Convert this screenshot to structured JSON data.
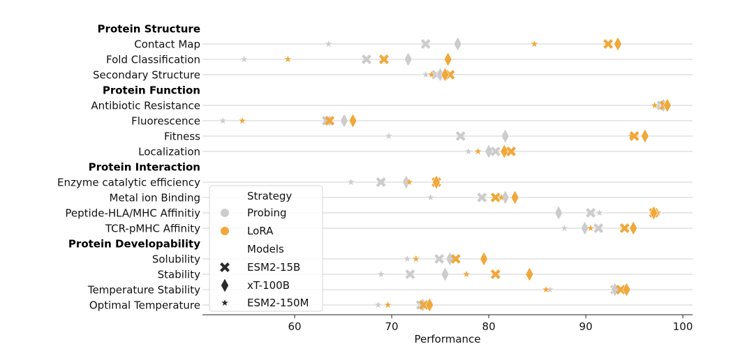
{
  "chart_data": {
    "type": "scatter",
    "xlabel": "Performance",
    "xlim": [
      50.5,
      101
    ],
    "xticks": [
      60,
      70,
      80,
      90,
      100
    ],
    "grid": "horizontal",
    "legend_placement": "lower-center-left",
    "colors": {
      "Probing": "#cccccc",
      "LoRA": "#f0a83a"
    },
    "rows": [
      {
        "kind": "group",
        "label": "Protein Structure"
      },
      {
        "kind": "task",
        "label": "Contact Map",
        "points": [
          {
            "model": "ESM2-150M",
            "strategy": "Probing",
            "value": 63.5
          },
          {
            "model": "ESM2-15B",
            "strategy": "Probing",
            "value": 73.5
          },
          {
            "model": "xT-100B",
            "strategy": "Probing",
            "value": 76.8
          },
          {
            "model": "ESM2-150M",
            "strategy": "LoRA",
            "value": 84.7
          },
          {
            "model": "ESM2-15B",
            "strategy": "LoRA",
            "value": 92.3
          },
          {
            "model": "xT-100B",
            "strategy": "LoRA",
            "value": 93.3
          }
        ]
      },
      {
        "kind": "task",
        "label": "Fold Classification",
        "points": [
          {
            "model": "ESM2-150M",
            "strategy": "Probing",
            "value": 54.8
          },
          {
            "model": "ESM2-150M",
            "strategy": "LoRA",
            "value": 59.3
          },
          {
            "model": "ESM2-15B",
            "strategy": "Probing",
            "value": 67.4
          },
          {
            "model": "ESM2-15B",
            "strategy": "LoRA",
            "value": 69.2
          },
          {
            "model": "xT-100B",
            "strategy": "Probing",
            "value": 71.7
          },
          {
            "model": "xT-100B",
            "strategy": "LoRA",
            "value": 75.8
          }
        ]
      },
      {
        "kind": "task",
        "label": "Secondary Structure",
        "points": [
          {
            "model": "ESM2-150M",
            "strategy": "Probing",
            "value": 73.5
          },
          {
            "model": "ESM2-150M",
            "strategy": "LoRA",
            "value": 74.1
          },
          {
            "model": "ESM2-15B",
            "strategy": "Probing",
            "value": 74.6
          },
          {
            "model": "xT-100B",
            "strategy": "Probing",
            "value": 75.0
          },
          {
            "model": "ESM2-15B",
            "strategy": "LoRA",
            "value": 76.0
          },
          {
            "model": "xT-100B",
            "strategy": "LoRA",
            "value": 75.5
          }
        ]
      },
      {
        "kind": "group",
        "label": "Protein Function"
      },
      {
        "kind": "task",
        "label": "Antibiotic Resistance",
        "points": [
          {
            "model": "ESM2-150M",
            "strategy": "LoRA",
            "value": 97.1
          },
          {
            "model": "ESM2-150M",
            "strategy": "Probing",
            "value": 97.5
          },
          {
            "model": "ESM2-15B",
            "strategy": "Probing",
            "value": 97.8
          },
          {
            "model": "xT-100B",
            "strategy": "Probing",
            "value": 98.0
          },
          {
            "model": "ESM2-15B",
            "strategy": "LoRA",
            "value": 98.1
          },
          {
            "model": "xT-100B",
            "strategy": "LoRA",
            "value": 98.4
          }
        ]
      },
      {
        "kind": "task",
        "label": "Fluorescence",
        "points": [
          {
            "model": "ESM2-150M",
            "strategy": "Probing",
            "value": 52.6
          },
          {
            "model": "ESM2-150M",
            "strategy": "LoRA",
            "value": 54.6
          },
          {
            "model": "ESM2-15B",
            "strategy": "Probing",
            "value": 63.3
          },
          {
            "model": "ESM2-15B",
            "strategy": "LoRA",
            "value": 63.6
          },
          {
            "model": "xT-100B",
            "strategy": "Probing",
            "value": 65.1
          },
          {
            "model": "xT-100B",
            "strategy": "LoRA",
            "value": 66.0
          }
        ]
      },
      {
        "kind": "task",
        "label": "Fitness",
        "points": [
          {
            "model": "ESM2-150M",
            "strategy": "Probing",
            "value": 69.7
          },
          {
            "model": "ESM2-15B",
            "strategy": "Probing",
            "value": 77.1
          },
          {
            "model": "xT-100B",
            "strategy": "Probing",
            "value": 81.7
          },
          {
            "model": "ESM2-150M",
            "strategy": "LoRA",
            "value": 94.7
          },
          {
            "model": "ESM2-15B",
            "strategy": "LoRA",
            "value": 95.0
          },
          {
            "model": "xT-100B",
            "strategy": "LoRA",
            "value": 96.1
          }
        ]
      },
      {
        "kind": "task",
        "label": "Localization",
        "points": [
          {
            "model": "ESM2-150M",
            "strategy": "Probing",
            "value": 77.9
          },
          {
            "model": "ESM2-150M",
            "strategy": "LoRA",
            "value": 78.9
          },
          {
            "model": "xT-100B",
            "strategy": "Probing",
            "value": 80.0
          },
          {
            "model": "ESM2-15B",
            "strategy": "Probing",
            "value": 80.7
          },
          {
            "model": "xT-100B",
            "strategy": "LoRA",
            "value": 81.6
          },
          {
            "model": "ESM2-15B",
            "strategy": "LoRA",
            "value": 82.3
          }
        ]
      },
      {
        "kind": "group",
        "label": "Protein Interaction"
      },
      {
        "kind": "task",
        "label": "Enzyme catalytic efficiency",
        "points": [
          {
            "model": "ESM2-150M",
            "strategy": "Probing",
            "value": 65.8
          },
          {
            "model": "ESM2-15B",
            "strategy": "Probing",
            "value": 68.9
          },
          {
            "model": "xT-100B",
            "strategy": "Probing",
            "value": 71.5
          },
          {
            "model": "ESM2-150M",
            "strategy": "LoRA",
            "value": 71.8
          },
          {
            "model": "ESM2-15B",
            "strategy": "LoRA",
            "value": 74.6
          },
          {
            "model": "xT-100B",
            "strategy": "LoRA",
            "value": 74.6
          }
        ]
      },
      {
        "kind": "task",
        "label": "Metal ion Binding",
        "points": [
          {
            "model": "ESM2-150M",
            "strategy": "Probing",
            "value": 74.0
          },
          {
            "model": "ESM2-15B",
            "strategy": "Probing",
            "value": 79.3
          },
          {
            "model": "ESM2-15B",
            "strategy": "LoRA",
            "value": 80.7
          },
          {
            "model": "ESM2-150M",
            "strategy": "LoRA",
            "value": 81.3
          },
          {
            "model": "xT-100B",
            "strategy": "Probing",
            "value": 81.7
          },
          {
            "model": "xT-100B",
            "strategy": "LoRA",
            "value": 82.7
          }
        ]
      },
      {
        "kind": "task",
        "label": "Peptide-HLA/MHC Affinitiy",
        "points": [
          {
            "model": "xT-100B",
            "strategy": "Probing",
            "value": 87.2
          },
          {
            "model": "ESM2-15B",
            "strategy": "Probing",
            "value": 90.5
          },
          {
            "model": "ESM2-150M",
            "strategy": "Probing",
            "value": 91.4
          },
          {
            "model": "ESM2-15B",
            "strategy": "LoRA",
            "value": 97.0
          },
          {
            "model": "ESM2-150M",
            "strategy": "LoRA",
            "value": 97.4
          },
          {
            "model": "xT-100B",
            "strategy": "LoRA",
            "value": 97.0
          }
        ]
      },
      {
        "kind": "task",
        "label": "TCR-pMHC Affinity",
        "points": [
          {
            "model": "ESM2-150M",
            "strategy": "Probing",
            "value": 87.8
          },
          {
            "model": "xT-100B",
            "strategy": "Probing",
            "value": 89.9
          },
          {
            "model": "ESM2-150M",
            "strategy": "LoRA",
            "value": 90.5
          },
          {
            "model": "ESM2-15B",
            "strategy": "Probing",
            "value": 91.3
          },
          {
            "model": "ESM2-15B",
            "strategy": "LoRA",
            "value": 94.0
          },
          {
            "model": "xT-100B",
            "strategy": "LoRA",
            "value": 94.9
          }
        ]
      },
      {
        "kind": "group",
        "label": "Protein Developability"
      },
      {
        "kind": "task",
        "label": "Solubility",
        "points": [
          {
            "model": "ESM2-150M",
            "strategy": "Probing",
            "value": 71.6
          },
          {
            "model": "ESM2-150M",
            "strategy": "LoRA",
            "value": 72.5
          },
          {
            "model": "ESM2-15B",
            "strategy": "Probing",
            "value": 74.9
          },
          {
            "model": "xT-100B",
            "strategy": "Probing",
            "value": 76.0
          },
          {
            "model": "ESM2-15B",
            "strategy": "LoRA",
            "value": 76.6
          },
          {
            "model": "xT-100B",
            "strategy": "LoRA",
            "value": 79.5
          }
        ]
      },
      {
        "kind": "task",
        "label": "Stability",
        "points": [
          {
            "model": "ESM2-150M",
            "strategy": "Probing",
            "value": 68.9
          },
          {
            "model": "ESM2-15B",
            "strategy": "Probing",
            "value": 71.9
          },
          {
            "model": "xT-100B",
            "strategy": "Probing",
            "value": 75.5
          },
          {
            "model": "ESM2-150M",
            "strategy": "LoRA",
            "value": 77.7
          },
          {
            "model": "ESM2-15B",
            "strategy": "LoRA",
            "value": 80.7
          },
          {
            "model": "xT-100B",
            "strategy": "LoRA",
            "value": 84.2
          }
        ]
      },
      {
        "kind": "task",
        "label": "Temperature Stability",
        "points": [
          {
            "model": "ESM2-150M",
            "strategy": "LoRA",
            "value": 85.9
          },
          {
            "model": "ESM2-150M",
            "strategy": "Probing",
            "value": 86.3
          },
          {
            "model": "ESM2-15B",
            "strategy": "Probing",
            "value": 93.0
          },
          {
            "model": "xT-100B",
            "strategy": "Probing",
            "value": 93.0
          },
          {
            "model": "ESM2-15B",
            "strategy": "LoRA",
            "value": 93.6
          },
          {
            "model": "xT-100B",
            "strategy": "LoRA",
            "value": 94.2
          }
        ]
      },
      {
        "kind": "task",
        "label": "Optimal Temperature",
        "points": [
          {
            "model": "ESM2-150M",
            "strategy": "Probing",
            "value": 68.6
          },
          {
            "model": "ESM2-150M",
            "strategy": "LoRA",
            "value": 69.6
          },
          {
            "model": "ESM2-15B",
            "strategy": "Probing",
            "value": 73.0
          },
          {
            "model": "xT-100B",
            "strategy": "Probing",
            "value": 73.2
          },
          {
            "model": "ESM2-15B",
            "strategy": "LoRA",
            "value": 73.3
          },
          {
            "model": "xT-100B",
            "strategy": "LoRA",
            "value": 73.9
          }
        ]
      }
    ],
    "legend": {
      "strategy_title": "Strategy",
      "strategies": [
        "Probing",
        "LoRA"
      ],
      "models_title": "Models",
      "models": [
        {
          "name": "ESM2-15B",
          "marker": "x"
        },
        {
          "name": "xT-100B",
          "marker": "diamond"
        },
        {
          "name": "ESM2-150M",
          "marker": "star"
        }
      ]
    }
  }
}
